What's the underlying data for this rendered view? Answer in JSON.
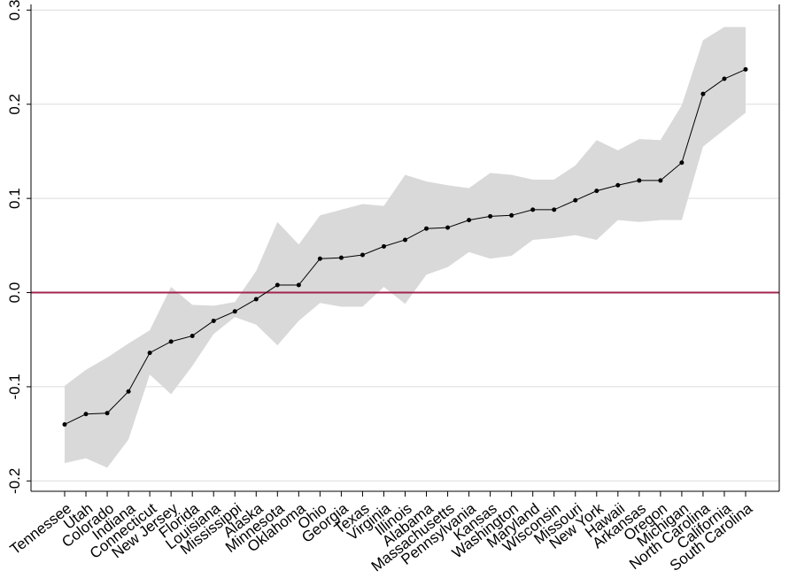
{
  "chart_data": {
    "type": "line",
    "categories": [
      "Tennessee",
      "Utah",
      "Colorado",
      "Indiana",
      "Connecticut",
      "New Jersey",
      "Florida",
      "Louisiana",
      "Mississippi",
      "Alaska",
      "Minnesota",
      "Oklahoma",
      "Ohio",
      "Georgia",
      "Texas",
      "Virginia",
      "Illinois",
      "Alabama",
      "Massachusetts",
      "Pennsylvania",
      "Kansas",
      "Washington",
      "Maryland",
      "Wisconsin",
      "Missouri",
      "New York",
      "Hawaii",
      "Arkansas",
      "Oregon",
      "Michigan",
      "North Carolina",
      "California",
      "South Carolina"
    ],
    "values": [
      -0.14,
      -0.129,
      -0.128,
      -0.105,
      -0.064,
      -0.052,
      -0.046,
      -0.03,
      -0.02,
      -0.007,
      0.008,
      0.008,
      0.036,
      0.037,
      0.04,
      0.049,
      0.056,
      0.068,
      0.069,
      0.077,
      0.081,
      0.082,
      0.088,
      0.088,
      0.098,
      0.108,
      0.114,
      0.119,
      0.119,
      0.138,
      0.211,
      0.227,
      0.237
    ],
    "upper": [
      -0.099,
      -0.082,
      -0.069,
      -0.054,
      -0.04,
      0.006,
      -0.013,
      -0.014,
      -0.01,
      0.023,
      0.075,
      0.051,
      0.082,
      0.088,
      0.094,
      0.092,
      0.125,
      0.118,
      0.114,
      0.111,
      0.127,
      0.125,
      0.12,
      0.12,
      0.135,
      0.162,
      0.151,
      0.163,
      0.162,
      0.199,
      0.268,
      0.282,
      0.282
    ],
    "lower": [
      -0.181,
      -0.176,
      -0.186,
      -0.156,
      -0.087,
      -0.108,
      -0.078,
      -0.044,
      -0.026,
      -0.034,
      -0.056,
      -0.03,
      -0.011,
      -0.015,
      -0.015,
      0.006,
      -0.012,
      0.019,
      0.027,
      0.043,
      0.036,
      0.039,
      0.056,
      0.058,
      0.061,
      0.056,
      0.077,
      0.075,
      0.077,
      0.077,
      0.155,
      0.173,
      0.191
    ],
    "color": "#000000",
    "band_color": "#d9d9d9",
    "hline": 0,
    "hline_color": "#a3244f",
    "ylim": [
      -0.211,
      0.306
    ],
    "yticks": [
      -0.2,
      -0.1,
      {
        "value": 0,
        "label": "0.0"
      },
      0.1,
      0.2,
      0.3
    ],
    "grid": true
  }
}
